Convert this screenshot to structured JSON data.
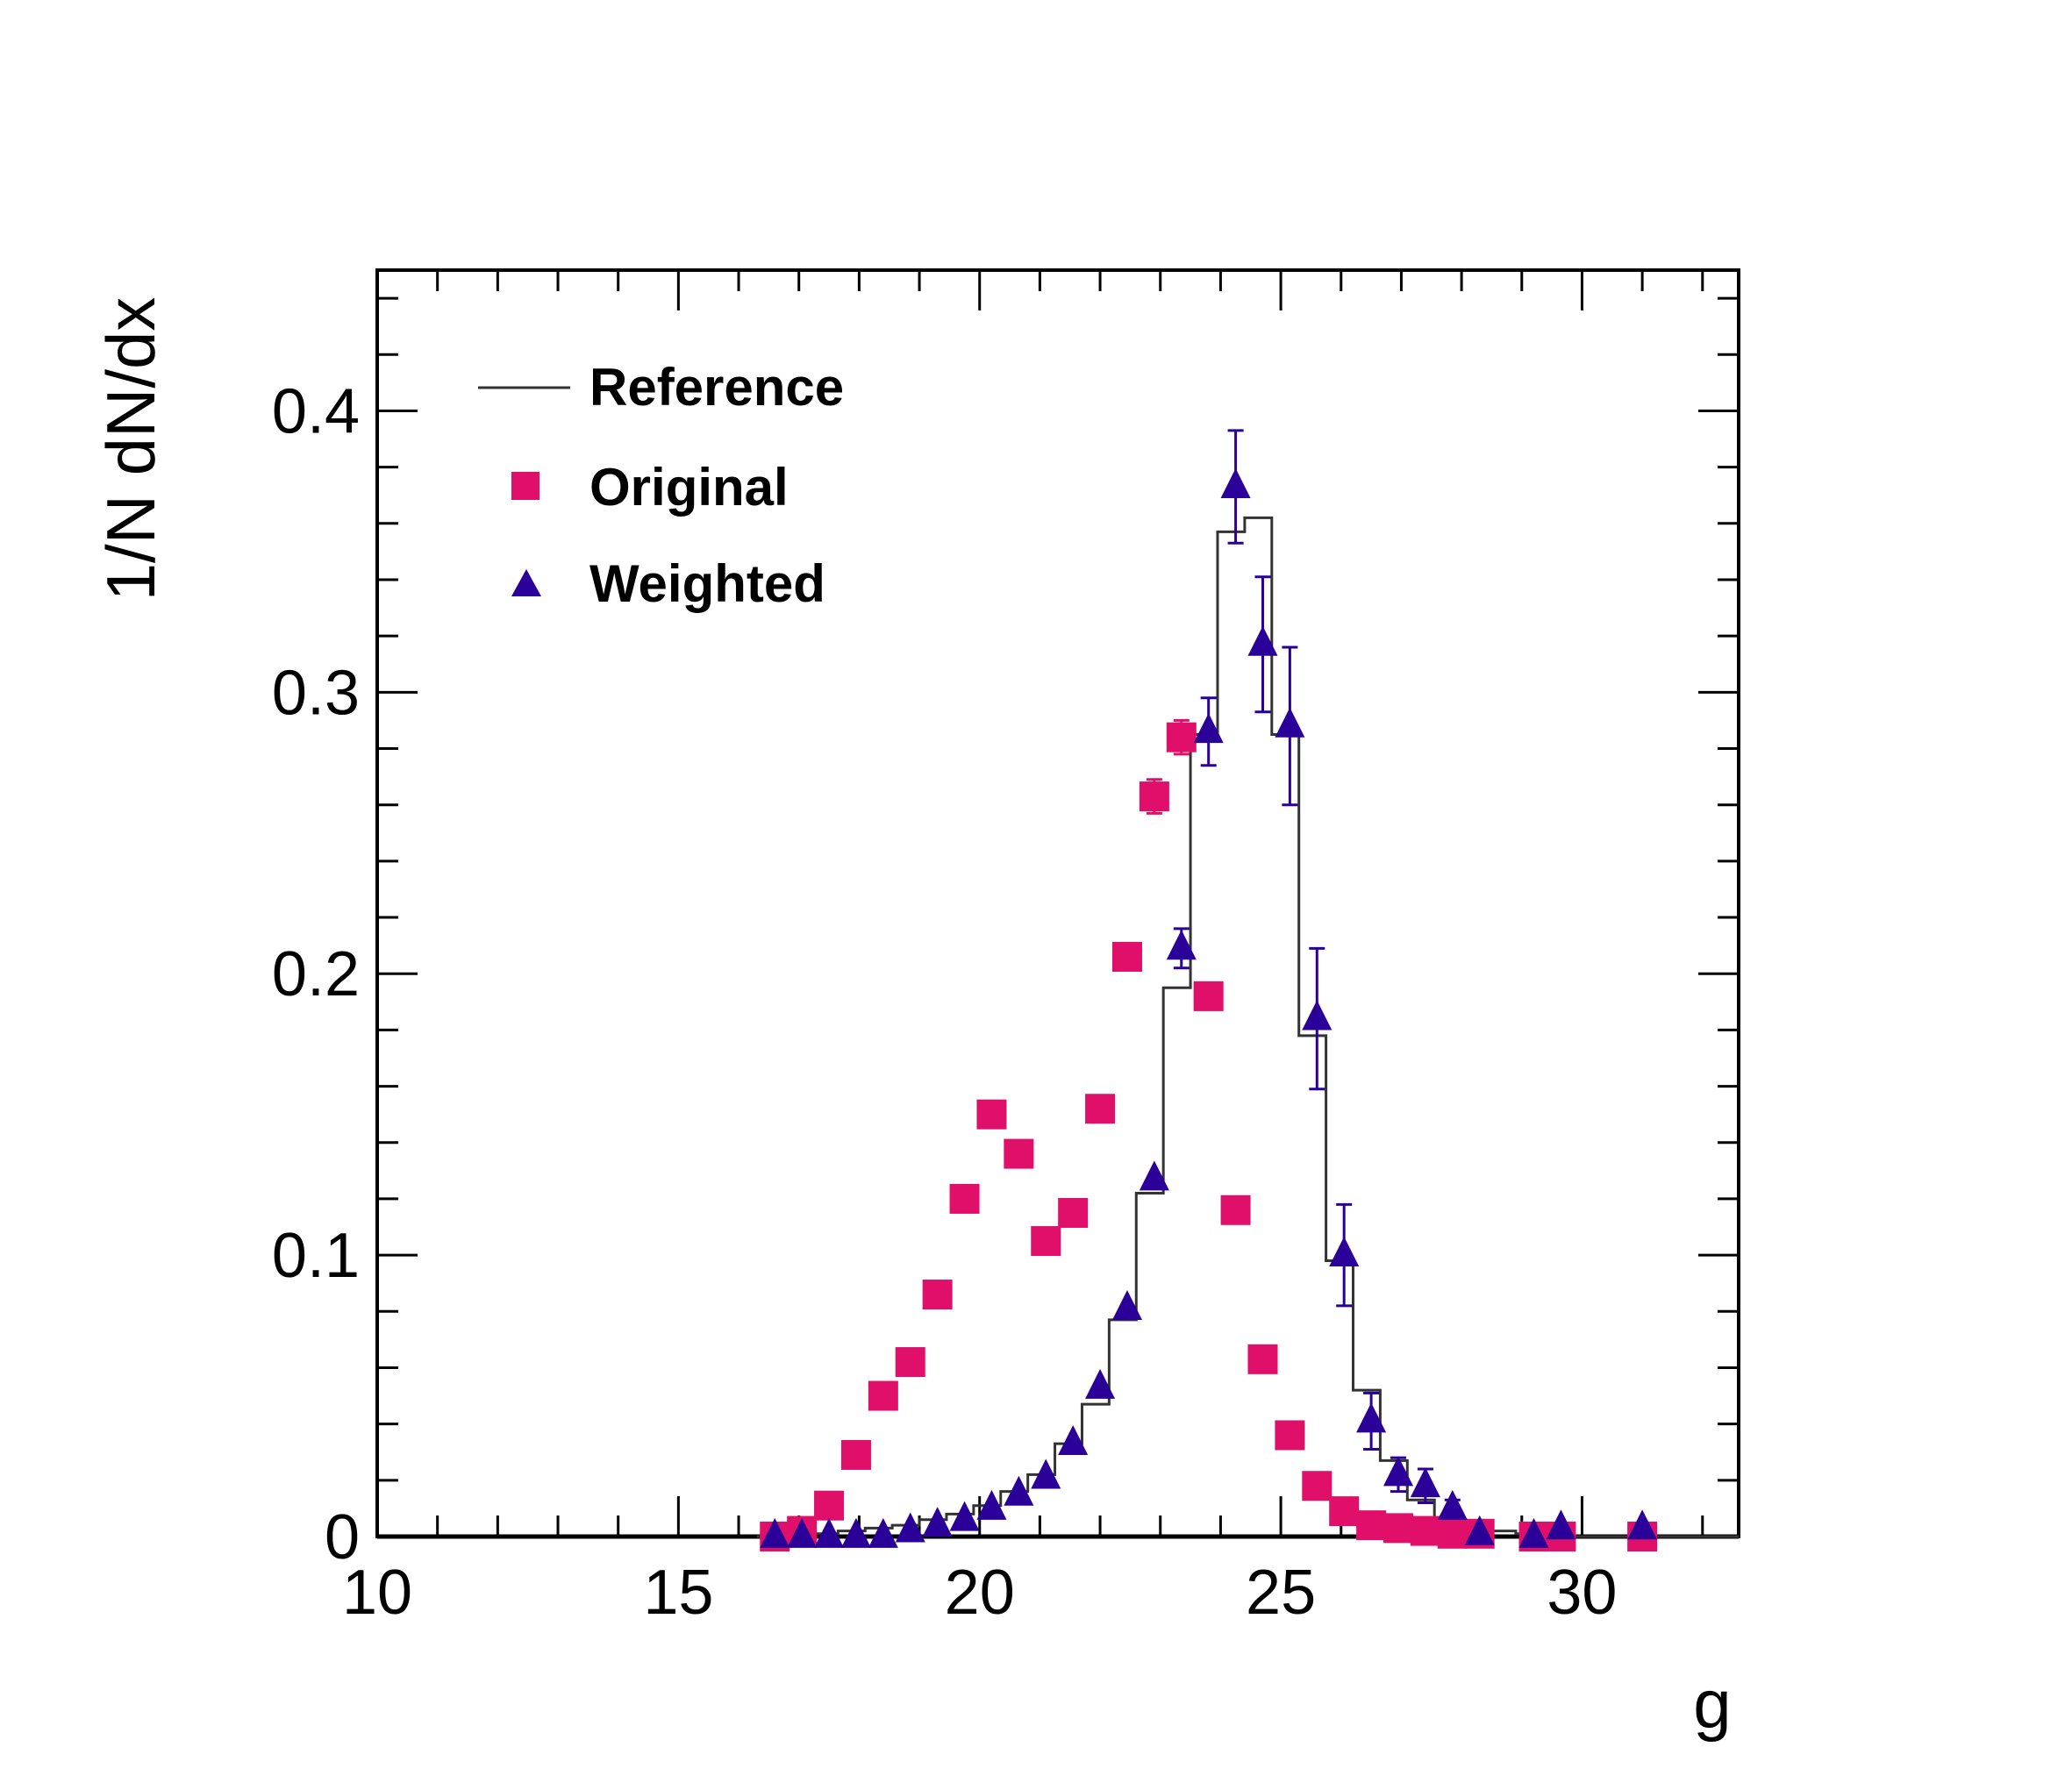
{
  "chart_data": {
    "type": "scatter",
    "title": "",
    "xlabel": "g",
    "ylabel": "1/N dN/dx",
    "xlim": [
      10,
      32.6
    ],
    "ylim": [
      0,
      0.45
    ],
    "x_ticks": [
      10,
      15,
      20,
      25,
      30
    ],
    "y_ticks": [
      0,
      0.1,
      0.2,
      0.3,
      0.4
    ],
    "x_tick_labels": [
      "10",
      "15",
      "20",
      "25",
      "30"
    ],
    "y_tick_labels": [
      "0",
      "0.1",
      "0.2",
      "0.3",
      "0.4"
    ],
    "legend": {
      "position": "top-left",
      "entries": [
        {
          "label": "Reference",
          "marker": "line",
          "color": "#333333"
        },
        {
          "label": "Original",
          "marker": "square",
          "color": "#e0106a"
        },
        {
          "label": "Weighted",
          "marker": "triangle",
          "color": "#2a0099"
        }
      ]
    },
    "reference": {
      "name": "Reference",
      "color": "#333333",
      "edges": [
        16.3,
        16.75,
        17.2,
        17.65,
        18.1,
        18.55,
        19.0,
        19.45,
        19.9,
        20.35,
        20.8,
        21.25,
        21.7,
        22.15,
        22.6,
        23.05,
        23.5,
        23.95,
        24.4,
        24.85,
        25.3,
        25.75,
        26.2,
        26.65,
        27.1,
        27.55,
        28.0,
        28.45,
        28.9,
        29.35,
        29.8,
        30.25,
        30.7,
        31.15,
        31.6,
        32.05,
        32.6
      ],
      "values": [
        0.0,
        0.001,
        0.001,
        0.002,
        0.003,
        0.004,
        0.006,
        0.008,
        0.011,
        0.016,
        0.022,
        0.033,
        0.047,
        0.077,
        0.122,
        0.195,
        0.285,
        0.357,
        0.362,
        0.285,
        0.178,
        0.098,
        0.052,
        0.027,
        0.013,
        0.006,
        0.003,
        0.002,
        0.001,
        0.001,
        0.0,
        0.0,
        0.0,
        0.0,
        0.0,
        0.0
      ]
    },
    "series": [
      {
        "name": "Original",
        "marker": "square",
        "color": "#e0106a",
        "x": [
          16.6,
          17.05,
          17.5,
          17.95,
          18.4,
          18.85,
          19.3,
          19.75,
          20.2,
          20.65,
          21.1,
          21.55,
          22.0,
          22.45,
          22.9,
          23.35,
          23.8,
          24.25,
          24.7,
          25.15,
          25.6,
          26.05,
          26.5,
          26.95,
          27.4,
          27.85,
          28.3,
          29.2,
          29.65,
          31.0
        ],
        "y": [
          0.0,
          0.002,
          0.011,
          0.029,
          0.05,
          0.062,
          0.086,
          0.12,
          0.15,
          0.136,
          0.105,
          0.115,
          0.152,
          0.206,
          0.263,
          0.284,
          0.192,
          0.116,
          0.063,
          0.036,
          0.018,
          0.009,
          0.004,
          0.003,
          0.002,
          0.001,
          0.001,
          0.0,
          0.0,
          0.0
        ],
        "err": [
          0.0,
          0.0,
          0.0,
          0.0,
          0.0,
          0.0,
          0.0,
          0.0,
          0.0,
          0.0,
          0.0,
          0.0,
          0.0,
          0.004,
          0.006,
          0.006,
          0.004,
          0.0,
          0.0,
          0.0,
          0.0,
          0.0,
          0.0,
          0.0,
          0.0,
          0.0,
          0.0,
          0.0,
          0.0,
          0.0
        ]
      },
      {
        "name": "Weighted",
        "marker": "triangle",
        "color": "#2a0099",
        "x": [
          16.6,
          17.05,
          17.5,
          17.95,
          18.4,
          18.85,
          19.3,
          19.75,
          20.2,
          20.65,
          21.1,
          21.55,
          22.0,
          22.45,
          22.9,
          23.35,
          23.8,
          24.25,
          24.7,
          25.15,
          25.6,
          26.05,
          26.5,
          26.95,
          27.4,
          27.85,
          28.3,
          29.2,
          29.65,
          31.0
        ],
        "y": [
          0.0,
          0.0,
          0.0,
          0.0,
          0.0,
          0.002,
          0.004,
          0.006,
          0.01,
          0.015,
          0.021,
          0.033,
          0.053,
          0.081,
          0.127,
          0.209,
          0.286,
          0.373,
          0.317,
          0.288,
          0.184,
          0.1,
          0.041,
          0.022,
          0.018,
          0.01,
          0.001,
          0.0,
          0.003,
          0.003
        ],
        "err": [
          0.0,
          0.0,
          0.0,
          0.0,
          0.0,
          0.0,
          0.0,
          0.0,
          0.0,
          0.0,
          0.0,
          0.0,
          0.0,
          0.0,
          0.0,
          0.007,
          0.012,
          0.02,
          0.024,
          0.028,
          0.025,
          0.018,
          0.01,
          0.006,
          0.006,
          0.003,
          0.0,
          0.0,
          0.0,
          0.0
        ]
      }
    ]
  }
}
